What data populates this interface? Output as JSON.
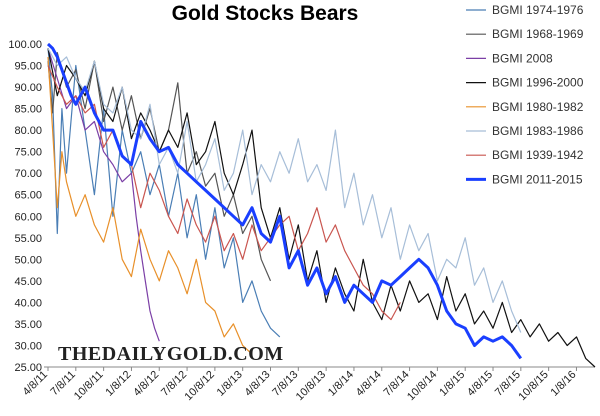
{
  "chart_data": {
    "type": "line",
    "title": "Gold Stocks Bears",
    "watermark": "THEDAILYGOLD.COM",
    "xlabel": "",
    "ylabel": "",
    "ylim": [
      25,
      100
    ],
    "yticks": [
      "100.00",
      "95.00",
      "90.00",
      "85.00",
      "80.00",
      "75.00",
      "70.00",
      "65.00",
      "60.00",
      "55.00",
      "50.00",
      "45.00",
      "40.00",
      "35.00",
      "30.00",
      "25.00"
    ],
    "xlim": [
      0,
      59
    ],
    "xtick_positions": [
      0,
      3,
      6,
      9,
      12,
      15,
      18,
      21,
      24,
      27,
      30,
      33,
      36,
      39,
      42,
      45,
      48,
      51,
      54,
      57
    ],
    "xticks": [
      "4/8/11",
      "7/8/11",
      "10/8/11",
      "1/8/12",
      "4/8/12",
      "7/8/12",
      "10/8/12",
      "1/8/13",
      "4/8/13",
      "7/8/13",
      "10/8/13",
      "1/8/14",
      "4/8/14",
      "7/8/14",
      "10/8/14",
      "1/8/15",
      "4/8/15",
      "7/8/15",
      "10/8/15",
      "1/8/16"
    ],
    "grid": false,
    "legend_position": "top-right",
    "series": [
      {
        "name": "BGMI 1974-1976",
        "color": "#4a7eb5",
        "width": 1.2,
        "x": [
          0,
          0.5,
          1,
          1.5,
          2,
          3,
          4,
          5,
          6,
          7,
          8,
          9,
          10,
          11,
          12,
          13,
          14,
          15,
          16,
          17,
          18,
          19,
          20,
          21,
          22,
          23,
          24,
          25
        ],
        "y": [
          99,
          88,
          56,
          85,
          70,
          95,
          80,
          65,
          85,
          60,
          80,
          70,
          75,
          65,
          72,
          60,
          70,
          55,
          65,
          50,
          62,
          48,
          55,
          40,
          45,
          38,
          34,
          32
        ]
      },
      {
        "name": "BGMI 1968-1969",
        "color": "#555555",
        "width": 1.2,
        "x": [
          0,
          0.5,
          1,
          2,
          3,
          4,
          5,
          6,
          7,
          8,
          9,
          10,
          11,
          12,
          13,
          14,
          14.5,
          15,
          16,
          17,
          18,
          19,
          20,
          21,
          22,
          23,
          24
        ],
        "y": [
          96,
          84,
          98,
          90,
          94,
          85,
          96,
          82,
          90,
          80,
          88,
          78,
          85,
          75,
          80,
          91,
          80,
          70,
          75,
          67,
          70,
          60,
          65,
          56,
          60,
          50,
          45
        ]
      },
      {
        "name": "BGMI 2008",
        "color": "#7b3fa6",
        "width": 1.2,
        "x": [
          0,
          1,
          2,
          3,
          4,
          5,
          6,
          7,
          8,
          9,
          9.5,
          10,
          10.5,
          11,
          11.5,
          12
        ],
        "y": [
          99,
          92,
          85,
          88,
          80,
          82,
          75,
          72,
          68,
          70,
          60,
          52,
          45,
          38,
          34,
          31
        ]
      },
      {
        "name": "BGMI 1996-2000",
        "color": "#111111",
        "width": 1.2,
        "x": [
          0,
          1,
          2,
          3,
          4,
          5,
          6,
          7,
          8,
          9,
          10,
          11,
          12,
          13,
          14,
          15,
          16,
          17,
          18,
          19,
          20,
          21,
          22,
          23,
          24,
          25,
          26,
          27,
          28,
          29,
          30,
          31,
          32,
          33,
          34,
          35,
          36,
          37,
          38,
          39,
          40,
          41,
          42,
          43,
          44,
          45,
          46,
          47,
          48,
          49,
          50,
          51,
          52,
          53,
          54,
          55,
          56,
          57,
          58,
          59
        ],
        "y": [
          99,
          88,
          95,
          92,
          88,
          96,
          85,
          82,
          90,
          78,
          84,
          80,
          75,
          80,
          76,
          84,
          72,
          75,
          82,
          70,
          65,
          72,
          80,
          62,
          55,
          62,
          50,
          58,
          45,
          52,
          40,
          48,
          42,
          38,
          50,
          40,
          36,
          44,
          38,
          45,
          40,
          42,
          36,
          46,
          38,
          42,
          35,
          38,
          34,
          40,
          33,
          36,
          32,
          35,
          31,
          33,
          30,
          32,
          27,
          25
        ]
      },
      {
        "name": "BGMI 1980-1982",
        "color": "#e8902a",
        "width": 1.2,
        "x": [
          0,
          0.5,
          1,
          1.5,
          2,
          3,
          4,
          5,
          6,
          7,
          8,
          9,
          10,
          11,
          12,
          13,
          14,
          15,
          16,
          17,
          18,
          19,
          20,
          21,
          22
        ],
        "y": [
          97,
          80,
          62,
          75,
          68,
          60,
          65,
          58,
          54,
          62,
          50,
          46,
          57,
          50,
          45,
          52,
          48,
          42,
          50,
          40,
          38,
          32,
          35,
          30,
          28
        ]
      },
      {
        "name": "BGMI 1983-1986",
        "color": "#a7bed8",
        "width": 1.2,
        "x": [
          0,
          1,
          2,
          3,
          4,
          5,
          6,
          7,
          8,
          9,
          10,
          11,
          12,
          13,
          14,
          15,
          16,
          17,
          18,
          19,
          20,
          21,
          22,
          23,
          24,
          25,
          26,
          27,
          28,
          29,
          30,
          31,
          32,
          33,
          34,
          35,
          36,
          37,
          38,
          39,
          40,
          41,
          42,
          43,
          44,
          45,
          46,
          47,
          48,
          49,
          50,
          51
        ],
        "y": [
          99,
          95,
          97,
          92,
          89,
          96,
          86,
          84,
          90,
          80,
          78,
          86,
          72,
          76,
          70,
          82,
          68,
          72,
          78,
          66,
          70,
          80,
          65,
          72,
          68,
          75,
          70,
          78,
          68,
          72,
          66,
          80,
          62,
          70,
          58,
          65,
          55,
          62,
          50,
          58,
          52,
          56,
          45,
          50,
          48,
          55,
          44,
          48,
          40,
          45,
          38,
          33
        ]
      },
      {
        "name": "BGMI 1939-1942",
        "color": "#c9554f",
        "width": 1.2,
        "x": [
          0,
          1,
          2,
          3,
          4,
          5,
          6,
          7,
          8,
          9,
          10,
          11,
          12,
          13,
          14,
          15,
          16,
          17,
          18,
          19,
          20,
          21,
          22,
          23,
          24,
          25,
          26,
          27,
          28,
          29,
          30,
          31,
          32,
          33,
          34,
          35,
          36,
          37,
          38
        ],
        "y": [
          95,
          90,
          86,
          88,
          84,
          86,
          76,
          80,
          74,
          72,
          62,
          70,
          66,
          60,
          56,
          64,
          58,
          54,
          60,
          52,
          56,
          50,
          58,
          52,
          55,
          58,
          60,
          52,
          56,
          62,
          54,
          58,
          52,
          48,
          44,
          42,
          38,
          36,
          40
        ]
      },
      {
        "name": "BGMI 2011-2015",
        "color": "#1a3fff",
        "width": 3,
        "x": [
          0,
          0.5,
          1,
          1.5,
          2,
          2.5,
          3,
          3.5,
          4,
          5,
          6,
          7,
          8,
          9,
          10,
          11,
          12,
          13,
          14,
          15,
          16,
          17,
          18,
          19,
          20,
          21,
          22,
          23,
          24,
          25,
          26,
          27,
          28,
          29,
          30,
          31,
          32,
          33,
          34,
          35,
          36,
          37,
          38,
          39,
          40,
          41,
          42,
          43,
          44,
          45,
          46,
          47,
          48,
          49,
          50,
          51
        ],
        "y": [
          100,
          99,
          97,
          94,
          91,
          88,
          86,
          88,
          90,
          84,
          80,
          80,
          74,
          72,
          82,
          78,
          75,
          76,
          72,
          70,
          68,
          66,
          64,
          62,
          60,
          58,
          62,
          56,
          54,
          60,
          48,
          52,
          44,
          48,
          42,
          46,
          40,
          44,
          42,
          40,
          45,
          44,
          46,
          48,
          50,
          48,
          44,
          38,
          35,
          34,
          30,
          32,
          31,
          32,
          30,
          27
        ]
      }
    ]
  }
}
